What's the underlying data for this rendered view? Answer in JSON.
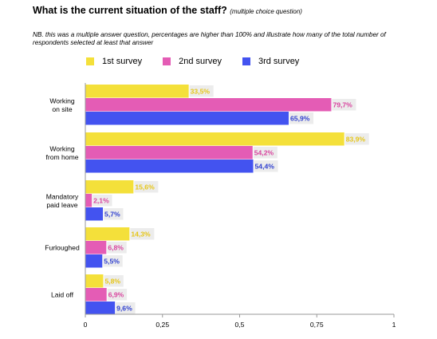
{
  "header": {
    "title": "What is the current situation of the staff?",
    "subtitle": "(multiple choice question)",
    "note": "NB. this was a multiple answer question, percentages are higher than 100% and illustrate how many of the total number of respondents selected at least that answer"
  },
  "chart_data": {
    "type": "bar",
    "orientation": "horizontal",
    "categories": [
      [
        "Working",
        "on site"
      ],
      [
        "Working",
        "from home"
      ],
      [
        "Mandatory",
        "paid leave"
      ],
      [
        "Furloughed"
      ],
      [
        "Laid off"
      ]
    ],
    "series": [
      {
        "name": "1st survey",
        "color": "#f4e03a",
        "label_color": "#e6c619",
        "values": [
          0.335,
          0.839,
          0.156,
          0.143,
          0.058
        ],
        "labels": [
          "33,5%",
          "83,9%",
          "15,6%",
          "14,3%",
          "5,8%"
        ]
      },
      {
        "name": "2nd survey",
        "color": "#e45cb5",
        "label_color": "#d9459f",
        "values": [
          0.797,
          0.542,
          0.021,
          0.068,
          0.069
        ],
        "labels": [
          "79,7%",
          "54,2%",
          "2,1%",
          "6,8%",
          "6,9%"
        ]
      },
      {
        "name": "3rd survey",
        "color": "#4353f0",
        "label_color": "#2f3fcf",
        "values": [
          0.659,
          0.544,
          0.057,
          0.055,
          0.096
        ],
        "labels": [
          "65,9%",
          "54,4%",
          "5,7%",
          "5,5%",
          "9,6%"
        ]
      }
    ],
    "xlim": [
      0,
      1
    ],
    "xticks": [
      0,
      0.25,
      0.5,
      0.75,
      1
    ],
    "xtick_labels": [
      "0",
      "0,25",
      "0,5",
      "0,75",
      "1"
    ],
    "grid": false,
    "legend_position": "top"
  }
}
